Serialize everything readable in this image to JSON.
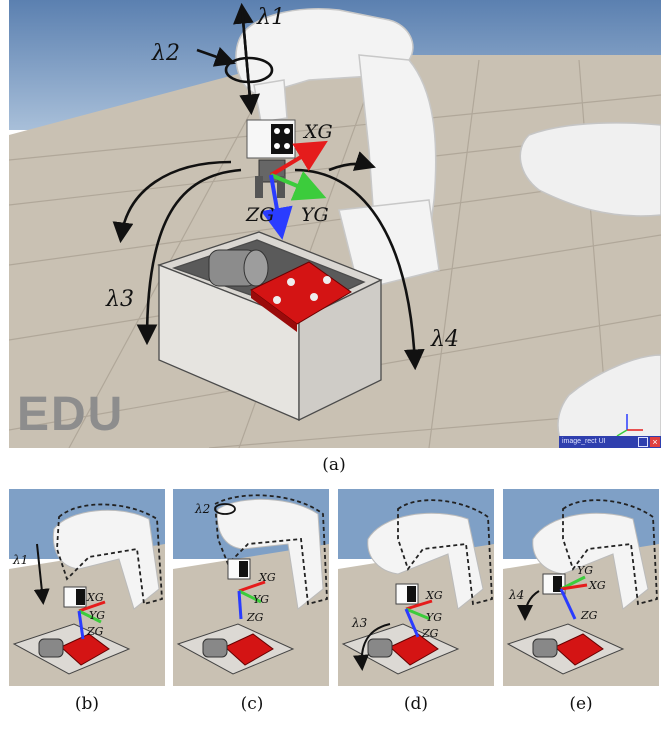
{
  "panels": {
    "a": {
      "caption": "(a)",
      "watermark": "EDU",
      "status_text": "image_rect UI"
    },
    "b": {
      "caption": "(b)"
    },
    "c": {
      "caption": "(c)"
    },
    "d": {
      "caption": "(d)"
    },
    "e": {
      "caption": "(e)"
    }
  },
  "labels": {
    "lambda1": "λ1",
    "lambda2": "λ2",
    "lambda3": "λ3",
    "lambda4": "λ4",
    "xg": "XG",
    "yg": "YG",
    "zg": "ZG"
  },
  "colors": {
    "x_axis": "#e51c1c",
    "y_axis": "#3ccc3c",
    "z_axis": "#2a3cff",
    "gripper_block": "#d41414",
    "status_bar": "#2f3fae"
  }
}
